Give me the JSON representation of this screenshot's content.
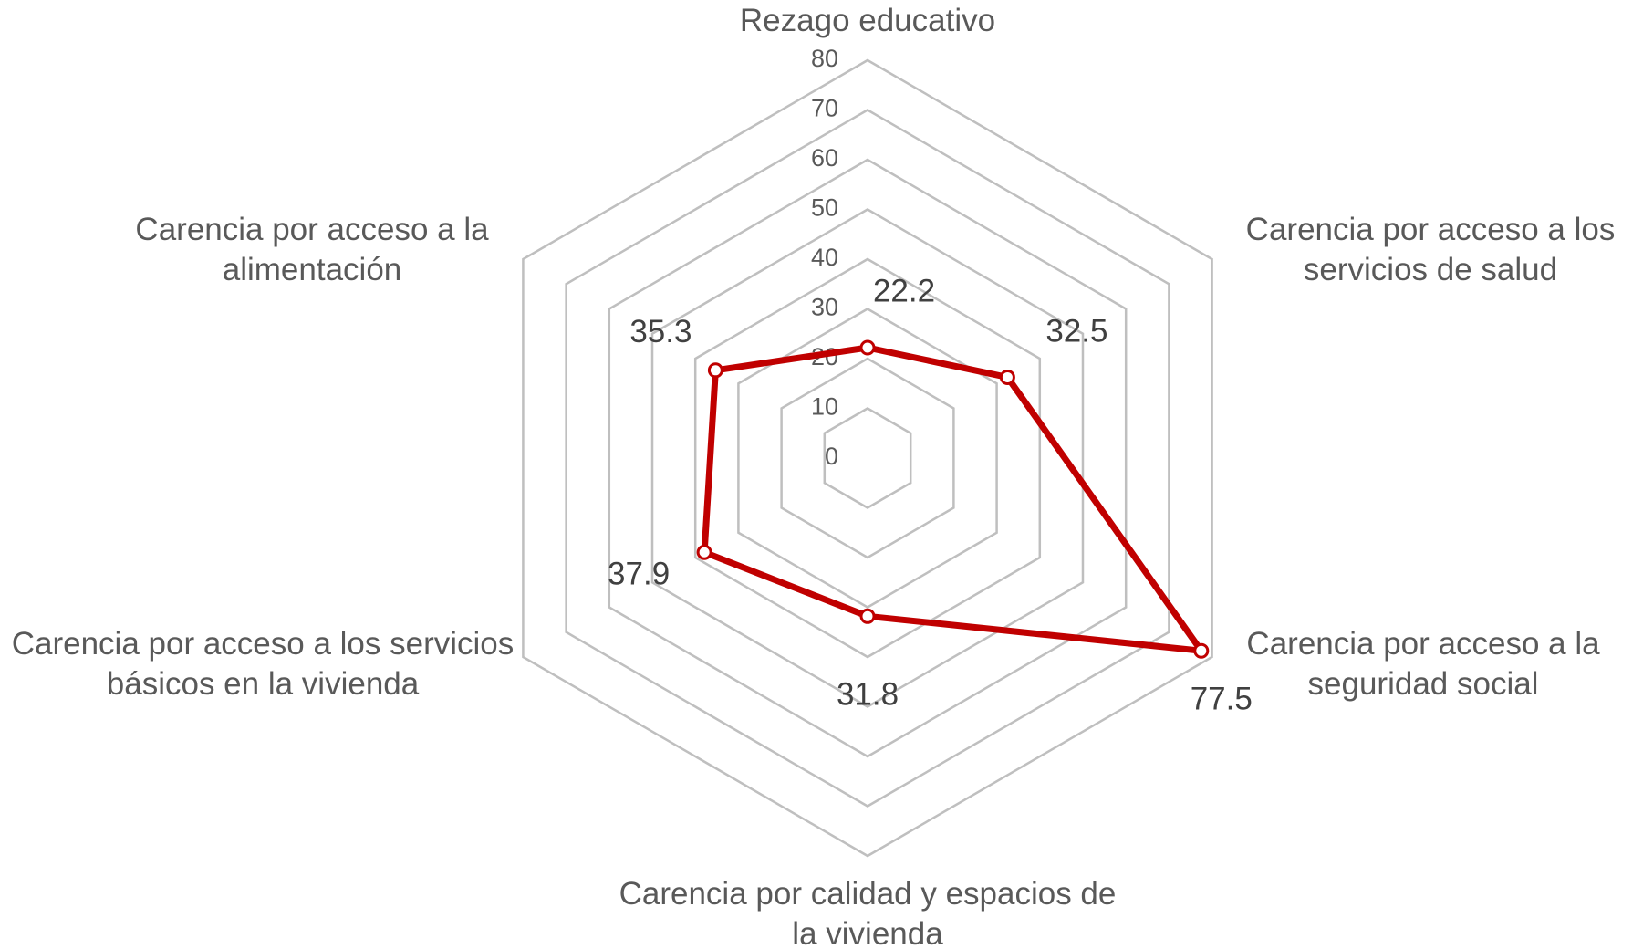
{
  "chart_data": {
    "type": "radar",
    "categories": [
      "Rezago educativo",
      "Carencia por acceso a los servicios de salud",
      "Carencia por acceso a la seguridad social",
      "Carencia por calidad y espacios de la vivienda",
      "Carencia por acceso a los servicios básicos en la vivienda",
      "Carencia por acceso a la alimentación"
    ],
    "values": [
      22.2,
      32.5,
      77.5,
      31.8,
      37.9,
      35.3
    ],
    "color": "#c00000",
    "ylim": [
      0,
      80
    ],
    "yticks": [
      0,
      10,
      20,
      30,
      40,
      50,
      60,
      70,
      80
    ],
    "grid": true
  }
}
